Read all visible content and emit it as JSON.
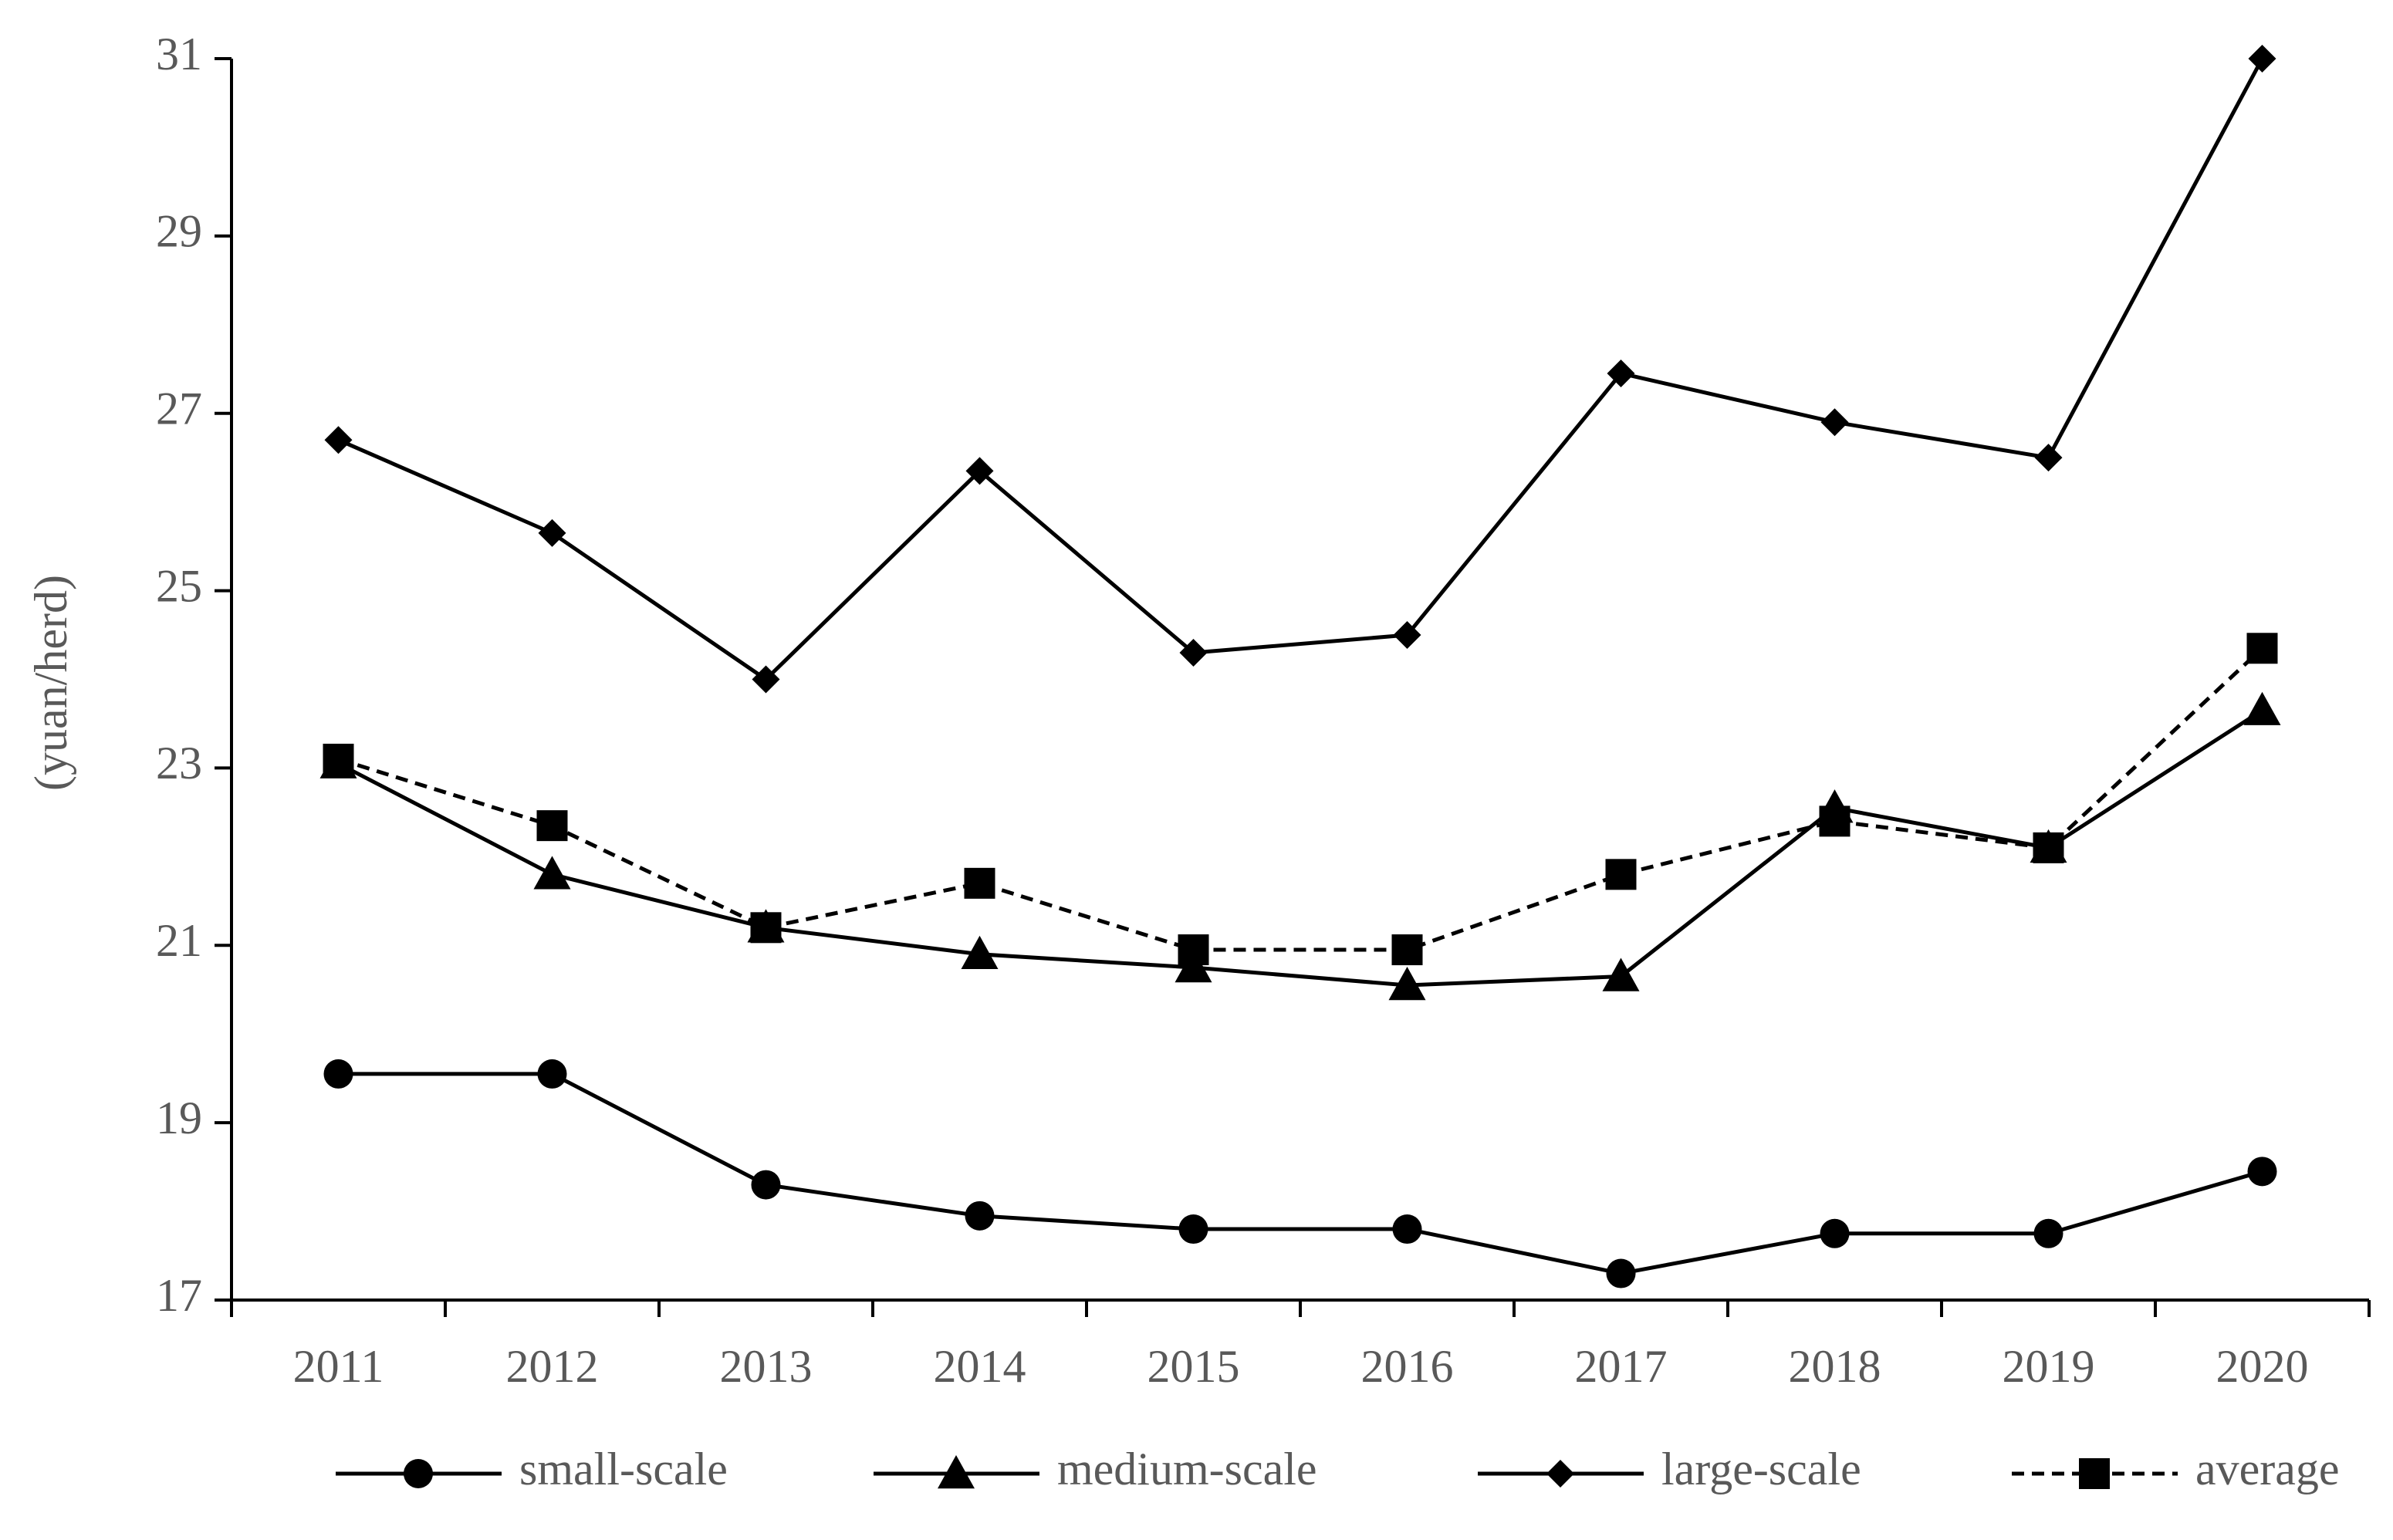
{
  "chart_data": {
    "type": "line",
    "ylabel": "(yuan/herd)",
    "xlabel": "",
    "title": "",
    "ylim": [
      17,
      31
    ],
    "yticks": [
      17,
      19,
      21,
      23,
      25,
      27,
      29,
      31
    ],
    "categories": [
      "2011",
      "2012",
      "2013",
      "2014",
      "2015",
      "2016",
      "2017",
      "2018",
      "2019",
      "2020"
    ],
    "grid": false,
    "legend_position": "bottom",
    "series": [
      {
        "name": "small-scale",
        "marker": "circle",
        "line": "solid",
        "color": "#000000",
        "values": [
          19.55,
          19.55,
          18.3,
          17.95,
          17.8,
          17.8,
          17.3,
          17.75,
          17.75,
          18.45
        ]
      },
      {
        "name": "medium-scale",
        "marker": "triangle",
        "line": "solid",
        "color": "#000000",
        "values": [
          23.05,
          21.8,
          21.2,
          20.9,
          20.75,
          20.55,
          20.65,
          22.55,
          22.1,
          23.65
        ]
      },
      {
        "name": "large-scale",
        "marker": "diamond",
        "line": "solid",
        "color": "#000000",
        "values": [
          26.7,
          25.65,
          24.0,
          26.35,
          24.3,
          24.5,
          27.45,
          26.9,
          26.5,
          31.0
        ]
      },
      {
        "name": "average",
        "marker": "square",
        "line": "dashed",
        "color": "#000000",
        "values": [
          23.1,
          22.35,
          21.2,
          21.7,
          20.95,
          20.95,
          21.8,
          22.4,
          22.1,
          24.35
        ]
      }
    ]
  }
}
